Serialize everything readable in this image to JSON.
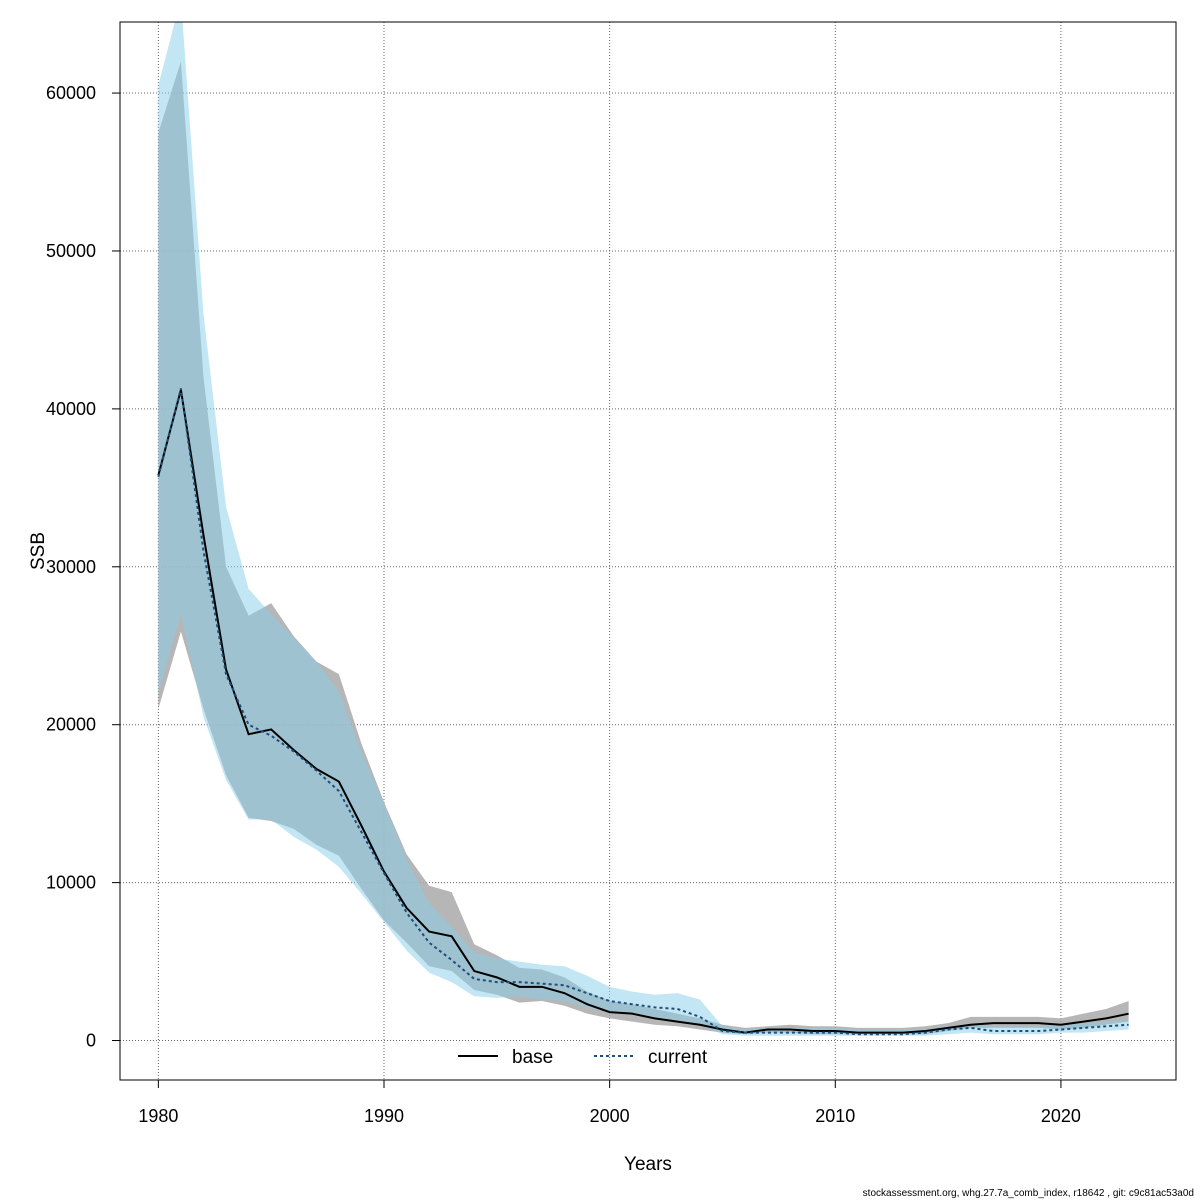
{
  "chart_data": {
    "type": "line",
    "title": "",
    "xlabel": "Years",
    "ylabel": "SSB",
    "xlim": [
      1978.3,
      2025.1
    ],
    "ylim": [
      -2500,
      64500
    ],
    "x_ticks": [
      1980,
      1990,
      2000,
      2010,
      2020
    ],
    "x_tick_labels": [
      "1980",
      "1990",
      "2000",
      "2010",
      "2020"
    ],
    "y_ticks": [
      0,
      10000,
      20000,
      30000,
      40000,
      50000,
      60000
    ],
    "y_tick_labels": [
      "0",
      "10000",
      "20000",
      "30000",
      "40000",
      "50000",
      "60000"
    ],
    "grid": true,
    "legend_position": "bottom-center",
    "x": [
      1980,
      1981,
      1982,
      1983,
      1984,
      1985,
      1986,
      1987,
      1988,
      1989,
      1990,
      1991,
      1992,
      1993,
      1994,
      1995,
      1996,
      1997,
      1998,
      1999,
      2000,
      2001,
      2002,
      2003,
      2004,
      2005,
      2006,
      2007,
      2008,
      2009,
      2010,
      2011,
      2012,
      2013,
      2014,
      2015,
      2016,
      2017,
      2018,
      2019,
      2020,
      2021,
      2022,
      2023
    ],
    "series": [
      {
        "name": "base",
        "line_style": "solid",
        "line_color": "#000000",
        "band_color": "#a9a9a9",
        "values": [
          35800,
          41200,
          32000,
          23500,
          19400,
          19700,
          18400,
          17200,
          16400,
          13600,
          10700,
          8400,
          6900,
          6600,
          4400,
          4000,
          3400,
          3400,
          3000,
          2300,
          1800,
          1700,
          1400,
          1200,
          1000,
          700,
          500,
          700,
          700,
          600,
          600,
          500,
          500,
          500,
          600,
          800,
          1000,
          1100,
          1100,
          1100,
          1000,
          1200,
          1400,
          1700
        ],
        "lower": [
          21000,
          25900,
          21000,
          16800,
          14100,
          13900,
          13400,
          12400,
          11700,
          9600,
          7600,
          6200,
          4700,
          4400,
          3200,
          2900,
          2400,
          2500,
          2200,
          1700,
          1400,
          1200,
          1000,
          900,
          700,
          500,
          400,
          500,
          500,
          400,
          400,
          400,
          400,
          400,
          400,
          600,
          800,
          800,
          800,
          800,
          700,
          800,
          1000,
          1200
        ],
        "upper": [
          57500,
          62000,
          42000,
          30000,
          26900,
          27700,
          25600,
          24000,
          23200,
          18800,
          15100,
          11800,
          9800,
          9400,
          6100,
          5400,
          4600,
          4500,
          4000,
          3100,
          2500,
          2300,
          2000,
          1700,
          1400,
          1000,
          800,
          900,
          1000,
          900,
          900,
          800,
          800,
          800,
          900,
          1100,
          1500,
          1500,
          1500,
          1500,
          1400,
          1700,
          2000,
          2500
        ]
      },
      {
        "name": "current",
        "line_style": "dashed",
        "line_color": "#1f4e79",
        "band_color": "#87ceeb",
        "values": [
          35700,
          41300,
          31000,
          23200,
          20000,
          19300,
          18300,
          17100,
          15800,
          13200,
          10600,
          8100,
          6200,
          5100,
          3900,
          3700,
          3700,
          3600,
          3500,
          3000,
          2500,
          2300,
          2100,
          2000,
          1500,
          600,
          500,
          500,
          500,
          500,
          500,
          400,
          400,
          400,
          500,
          700,
          800,
          600,
          600,
          600,
          700,
          800,
          900,
          1000
        ],
        "lower": [
          22000,
          27000,
          20500,
          16500,
          14000,
          14000,
          12900,
          12100,
          11000,
          9300,
          7500,
          5700,
          4300,
          3700,
          2800,
          2700,
          2800,
          2600,
          2500,
          2100,
          1800,
          1600,
          1400,
          1300,
          1000,
          400,
          300,
          300,
          300,
          300,
          300,
          300,
          300,
          300,
          300,
          400,
          500,
          400,
          400,
          400,
          500,
          500,
          600,
          700
        ],
        "upper": [
          60500,
          66000,
          46000,
          33800,
          28600,
          27000,
          25500,
          24000,
          22100,
          18300,
          15000,
          11500,
          8700,
          7200,
          5600,
          5200,
          5000,
          4800,
          4700,
          4100,
          3400,
          3100,
          2900,
          3000,
          2600,
          900,
          700,
          800,
          800,
          800,
          800,
          700,
          700,
          700,
          700,
          900,
          1100,
          900,
          900,
          900,
          1000,
          1100,
          1200,
          1300
        ]
      }
    ]
  },
  "footer_text": "stockassessment.org, whg.27.7a_comb_index, r18642 , git: c9c81ac53a0d"
}
